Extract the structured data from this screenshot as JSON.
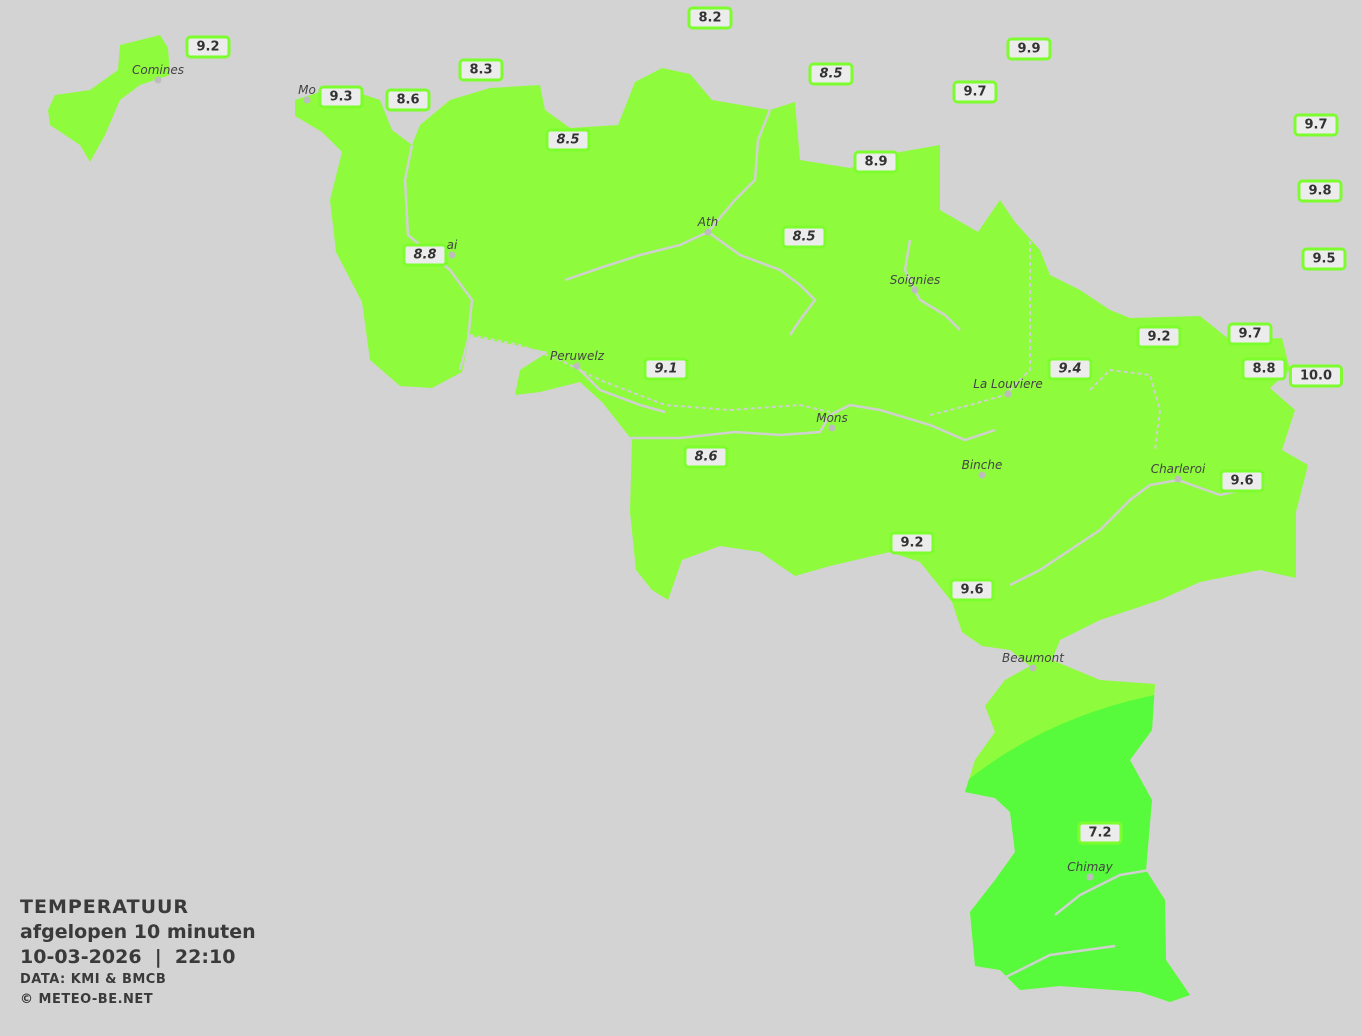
{
  "legend": {
    "title": "TEMPERATUUR",
    "period": "afgelopen 10 minuten",
    "datetime": "10-03-2026  |  22:10",
    "source": "DATA: KMI & BMCB",
    "copyright": "© METEO-BE.NET"
  },
  "colors": {
    "background": "#d3d3d3",
    "region_warm": "#8efc3c",
    "region_cool": "#57fb3c",
    "label_border": "#7dfc2e",
    "rivers": "#d0d0d0"
  },
  "cities": [
    "Comines",
    "Mo",
    "ai",
    "Ath",
    "Soignies",
    "Peruwelz",
    "La Louviere",
    "Mons",
    "Binche",
    "Charleroi",
    "Beaumont",
    "Chimay"
  ],
  "stations": [
    {
      "value": "9.2",
      "italic": false
    },
    {
      "value": "8.2",
      "italic": false
    },
    {
      "value": "8.3",
      "italic": false
    },
    {
      "value": "9.9",
      "italic": false
    },
    {
      "value": "8.5",
      "italic": true
    },
    {
      "value": "9.7",
      "italic": false
    },
    {
      "value": "9.3",
      "italic": false
    },
    {
      "value": "8.6",
      "italic": false
    },
    {
      "value": "9.7",
      "italic": false
    },
    {
      "value": "8.5",
      "italic": true
    },
    {
      "value": "8.9",
      "italic": false
    },
    {
      "value": "9.8",
      "italic": false
    },
    {
      "value": "8.5",
      "italic": true
    },
    {
      "value": "8.8",
      "italic": true
    },
    {
      "value": "9.5",
      "italic": false
    },
    {
      "value": "9.2",
      "italic": false
    },
    {
      "value": "9.7",
      "italic": false
    },
    {
      "value": "9.1",
      "italic": true
    },
    {
      "value": "9.4",
      "italic": true
    },
    {
      "value": "8.8",
      "italic": false
    },
    {
      "value": "10.0",
      "italic": false
    },
    {
      "value": "8.6",
      "italic": true
    },
    {
      "value": "9.6",
      "italic": false
    },
    {
      "value": "9.2",
      "italic": false
    },
    {
      "value": "9.6",
      "italic": false
    },
    {
      "value": "7.2",
      "italic": false
    }
  ]
}
